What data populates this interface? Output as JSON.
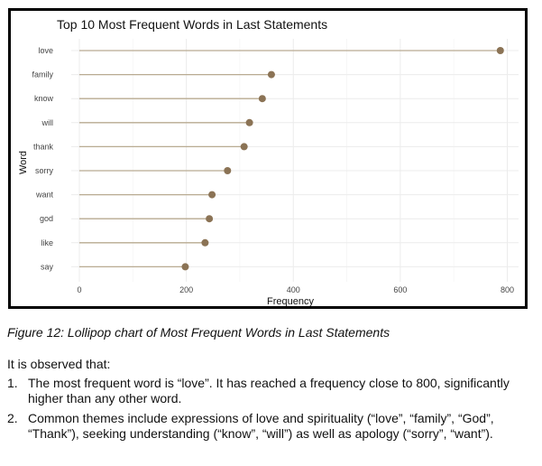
{
  "chart_data": {
    "type": "lollipop",
    "title": "Top 10 Most Frequent Words in Last Statements",
    "xlabel": "Frequency",
    "ylabel": "Word",
    "xlim": [
      0,
      800
    ],
    "xticks": [
      0,
      200,
      400,
      600,
      800
    ],
    "categories": [
      "love",
      "family",
      "know",
      "will",
      "thank",
      "sorry",
      "want",
      "god",
      "like",
      "say"
    ],
    "values": [
      787,
      359,
      342,
      318,
      308,
      277,
      248,
      243,
      235,
      198
    ],
    "grid": true,
    "colors": {
      "stem": "#b9ab92",
      "dot": "#8b7355"
    }
  },
  "caption": "Figure 12: Lollipop chart of Most Frequent Words in Last Statements",
  "intro": "It is observed that:",
  "observations": [
    {
      "number": "1.",
      "text": "The most frequent word is “love”. It has reached a frequency close to 800, significantly higher than any other word."
    },
    {
      "number": "2.",
      "text": "Common themes include expressions of love and spirituality (“love”, “family”, “God”, “Thank”), seeking understanding (“know”, “will”) as well as apology (“sorry”, “want”)."
    }
  ]
}
